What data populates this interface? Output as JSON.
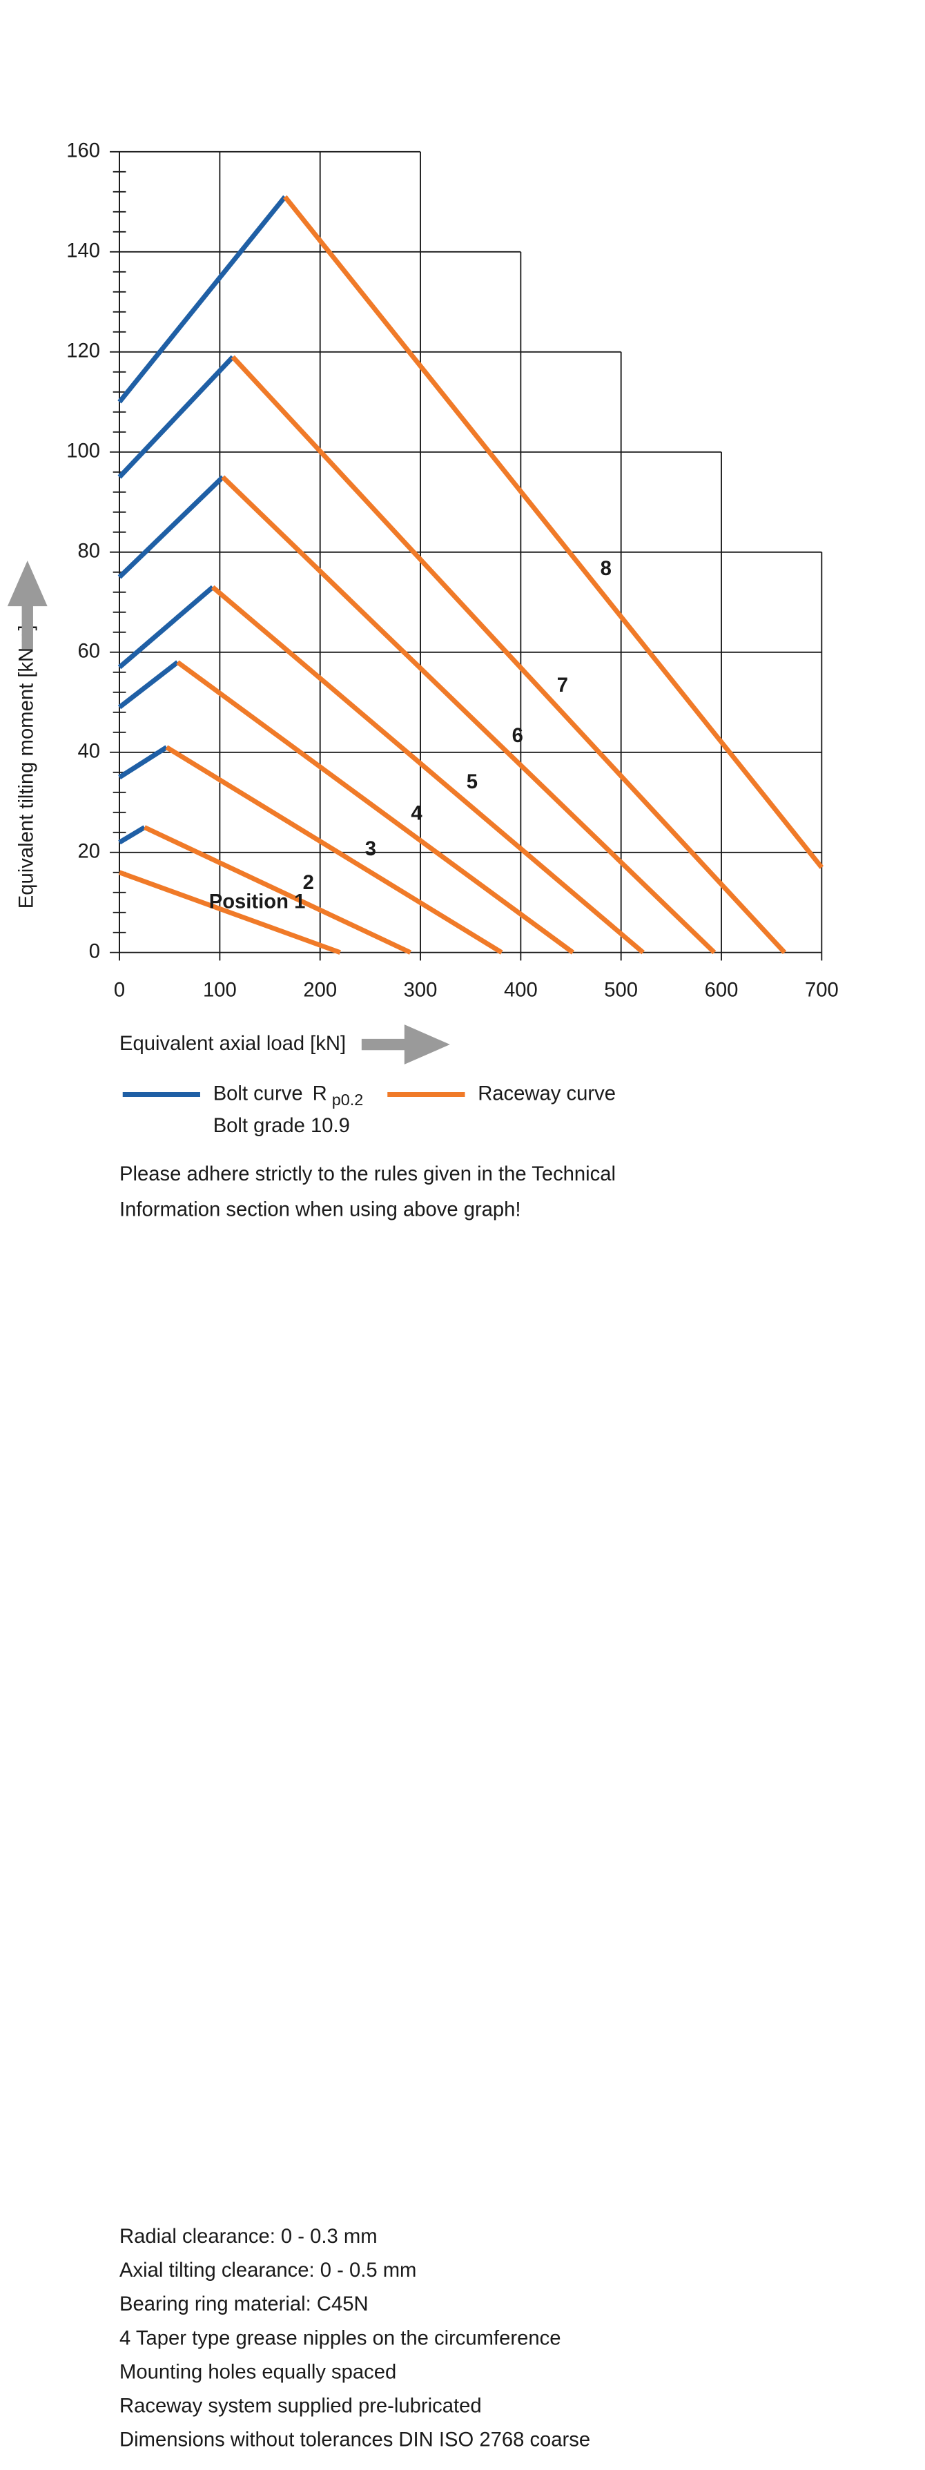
{
  "chart_data": {
    "type": "line",
    "xlabel": "Equivalent axial load [kN]",
    "ylabel": "Equivalent tilting moment [kNm]",
    "xlim": [
      0,
      700
    ],
    "xticks": [
      0,
      100,
      200,
      300,
      400,
      500,
      600,
      700
    ],
    "ylim": [
      0,
      160
    ],
    "yticks": [
      0,
      20,
      40,
      60,
      80,
      100,
      120,
      140,
      160
    ],
    "grid": true,
    "series": [
      {
        "name": "Bolt curve",
        "name_symbol": "R",
        "name_subscript": "p0.2",
        "name_note": "Bolt grade 10.9",
        "color": "#1f5fa5",
        "segments": [
          {
            "x": [
              0,
              25
            ],
            "y": [
              22,
              25
            ]
          },
          {
            "x": [
              0,
              47
            ],
            "y": [
              35,
              41
            ]
          },
          {
            "x": [
              0,
              58
            ],
            "y": [
              49,
              58
            ]
          },
          {
            "x": [
              0,
              93
            ],
            "y": [
              57,
              73
            ]
          },
          {
            "x": [
              0,
              103
            ],
            "y": [
              75,
              95
            ]
          },
          {
            "x": [
              0,
              113
            ],
            "y": [
              95,
              119
            ]
          },
          {
            "x": [
              0,
              165
            ],
            "y": [
              110,
              151
            ]
          }
        ]
      },
      {
        "name": "Raceway curve",
        "color": "#f07a28",
        "segments": [
          {
            "x": [
              0,
              220
            ],
            "y": [
              16,
              0
            ]
          },
          {
            "x": [
              25,
              290
            ],
            "y": [
              25,
              0
            ]
          },
          {
            "x": [
              47,
              381
            ],
            "y": [
              41,
              0
            ]
          },
          {
            "x": [
              58,
              452
            ],
            "y": [
              58,
              0
            ]
          },
          {
            "x": [
              93,
              522
            ],
            "y": [
              73,
              0
            ]
          },
          {
            "x": [
              103,
              593
            ],
            "y": [
              95,
              0
            ]
          },
          {
            "x": [
              113,
              663
            ],
            "y": [
              119,
              0
            ]
          },
          {
            "x": [
              165,
              700
            ],
            "y": [
              151,
              17
            ]
          }
        ]
      }
    ],
    "position_labels": [
      "Position 1",
      "2",
      "3",
      "4",
      "5",
      "6",
      "7",
      "8"
    ],
    "note": [
      "Please adhere strictly to the rules given in the Technical",
      "Information section when using above graph!"
    ]
  },
  "specs": [
    "Radial clearance: 0 - 0.3 mm",
    "Axial tilting clearance: 0 - 0.5 mm",
    "Bearing ring material: C45N",
    "4 Taper type grease nipples on the circumference",
    "Mounting holes equally spaced",
    "Raceway system supplied pre-lubricated",
    "Dimensions without tolerances DIN ISO 2768 coarse"
  ]
}
